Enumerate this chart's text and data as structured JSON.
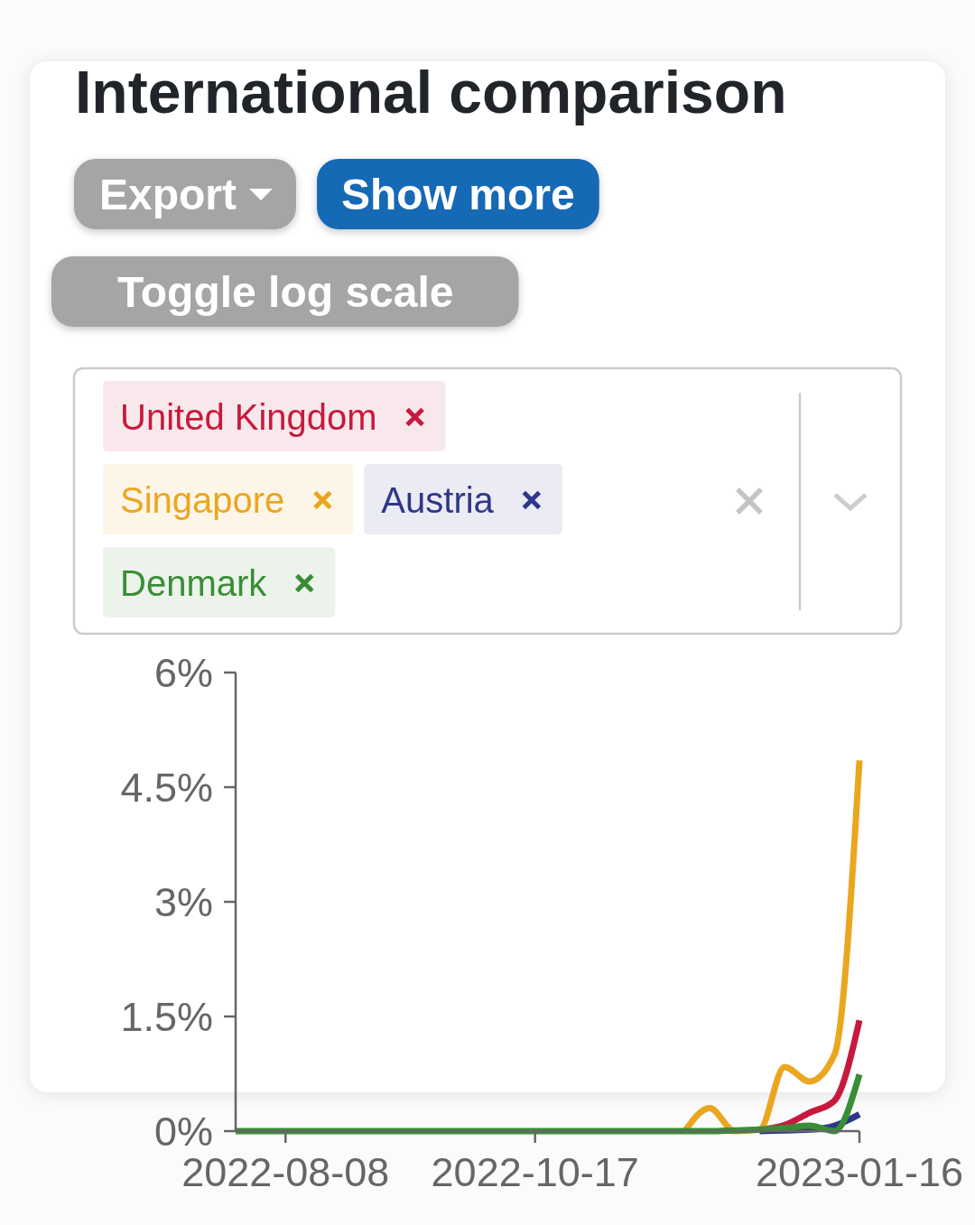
{
  "chart_data": {
    "type": "line",
    "title": "International comparison",
    "annotations": [
      "Export",
      "Show more",
      "Toggle log scale"
    ],
    "x": [
      "2022-07-25",
      "2022-08-01",
      "2022-08-08",
      "2022-08-15",
      "2022-08-22",
      "2022-08-29",
      "2022-09-05",
      "2022-09-12",
      "2022-09-19",
      "2022-09-26",
      "2022-10-03",
      "2022-10-10",
      "2022-10-17",
      "2022-10-24",
      "2022-10-31",
      "2022-11-07",
      "2022-11-14",
      "2022-11-21",
      "2022-11-28",
      "2022-12-05",
      "2022-12-12",
      "2022-12-19",
      "2022-12-26",
      "2023-01-02",
      "2023-01-09",
      "2023-01-16"
    ],
    "series": [
      {
        "name": "United Kingdom",
        "color": "#c8193c",
        "values": [
          null,
          null,
          null,
          null,
          null,
          null,
          null,
          null,
          null,
          null,
          null,
          null,
          null,
          null,
          null,
          null,
          null,
          null,
          null,
          null,
          null,
          0.02,
          0.08,
          0.24,
          0.4,
          1.45
        ]
      },
      {
        "name": "Singapore",
        "color": "#eba620",
        "values": [
          null,
          null,
          null,
          null,
          null,
          null,
          null,
          null,
          null,
          null,
          null,
          null,
          null,
          null,
          null,
          null,
          null,
          null,
          0,
          0.3,
          0,
          0.02,
          0.84,
          0.65,
          1.0,
          4.85
        ]
      },
      {
        "name": "Austria",
        "color": "#2e368a",
        "values": [
          null,
          null,
          null,
          null,
          null,
          null,
          null,
          null,
          null,
          null,
          null,
          null,
          null,
          null,
          null,
          null,
          null,
          null,
          null,
          null,
          null,
          0,
          0.01,
          0.02,
          0.07,
          0.22
        ]
      },
      {
        "name": "Denmark",
        "color": "#3a8d36",
        "values": [
          0,
          0,
          0,
          0,
          0,
          0,
          0,
          0,
          0,
          0,
          0,
          0,
          0,
          0,
          0,
          0,
          0,
          0,
          0,
          0,
          0.01,
          0.02,
          0.04,
          0.07,
          0,
          0.74
        ]
      }
    ],
    "xlim": [
      "2022-07-25",
      "2023-01-16"
    ],
    "xticks": [
      "2022-08-08",
      "2022-10-17",
      "2023-01-16"
    ],
    "ylim": [
      0,
      6
    ],
    "yticks": [
      {
        "value": 0,
        "label": "0%"
      },
      {
        "value": 1.5,
        "label": "1.5%"
      },
      {
        "value": 3,
        "label": "3%"
      },
      {
        "value": 4.5,
        "label": "4.5%"
      },
      {
        "value": 6,
        "label": "6%"
      }
    ],
    "legend": "top"
  }
}
